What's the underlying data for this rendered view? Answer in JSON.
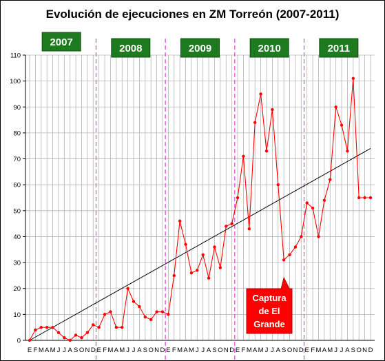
{
  "chart_data": {
    "type": "line",
    "title": "Evolución de ejecuciones en ZM Torreón (2007-2011)",
    "xlabel": "",
    "ylabel": "",
    "ylim": [
      0,
      110
    ],
    "y_ticks": [
      0,
      10,
      20,
      30,
      40,
      50,
      60,
      70,
      80,
      90,
      100,
      110
    ],
    "grid": true,
    "legend": "none",
    "month_letters": [
      "E",
      "F",
      "M",
      "A",
      "M",
      "J",
      "J",
      "A",
      "S",
      "O",
      "N",
      "D"
    ],
    "year_labels": [
      {
        "label": "2007",
        "start_index": 0
      },
      {
        "label": "2008",
        "start_index": 12
      },
      {
        "label": "2009",
        "start_index": 24
      },
      {
        "label": "2010",
        "start_index": 36
      },
      {
        "label": "2011",
        "start_index": 48
      }
    ],
    "series": [
      {
        "values": [
          0,
          4,
          5,
          5,
          5,
          3,
          1,
          0,
          2,
          1,
          3,
          6,
          5,
          10,
          11,
          5,
          5,
          20,
          15,
          13,
          9,
          8,
          11,
          11,
          10,
          25,
          46,
          37,
          26,
          27,
          33,
          24,
          36,
          28,
          44,
          45,
          55,
          71,
          43,
          84,
          95,
          73,
          89,
          60,
          31,
          33,
          36,
          40,
          53,
          51,
          40,
          54,
          62,
          90,
          83,
          73,
          101,
          55,
          55,
          55
        ]
      }
    ],
    "trendline": {
      "start": 0,
      "end": 74
    },
    "annotation": {
      "text": "Captura de El Grande",
      "lines": [
        "Captura",
        "de El",
        "Grande"
      ],
      "index": 44
    }
  },
  "colors": {
    "series": "#ff0000",
    "trendline": "#000000",
    "year_box": "#1e7a1e",
    "year_text": "#ffffff",
    "year_divider": "#e040e0",
    "callout": "#ff0000",
    "callout_text": "#ffffff",
    "grid": "#b4b4b4"
  }
}
